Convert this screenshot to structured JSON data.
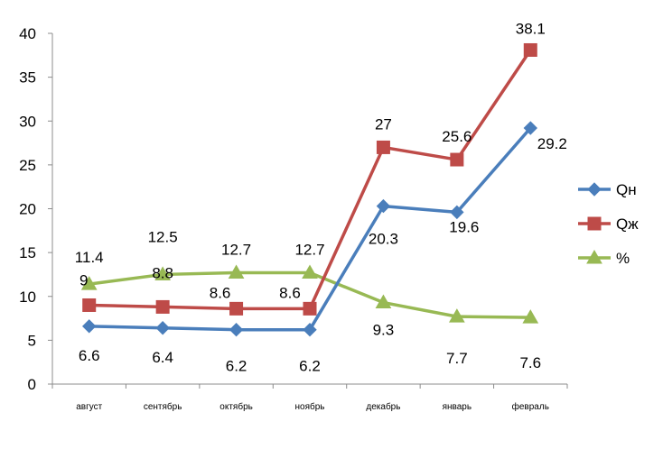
{
  "chart_data": {
    "type": "line",
    "categories": [
      "август",
      "сентябрь",
      "октябрь",
      "ноябрь",
      "декабрь",
      "январь",
      "февраль"
    ],
    "ylim": [
      0,
      40
    ],
    "yticks": [
      0,
      5,
      10,
      15,
      20,
      25,
      30,
      35,
      40
    ],
    "grid": false,
    "legend_position": "right",
    "series": [
      {
        "name": "Qн",
        "values": [
          6.6,
          6.4,
          6.2,
          6.2,
          20.3,
          19.6,
          29.2
        ],
        "color": "#4a7ebb",
        "marker": "diamond"
      },
      {
        "name": "Qж",
        "values": [
          9,
          8.8,
          8.6,
          8.6,
          27,
          25.6,
          38.1
        ],
        "color": "#be4b48",
        "marker": "square"
      },
      {
        "name": "%",
        "values": [
          11.4,
          12.5,
          12.7,
          12.7,
          9.3,
          7.7,
          7.6
        ],
        "color": "#98b954",
        "marker": "triangle"
      }
    ]
  }
}
